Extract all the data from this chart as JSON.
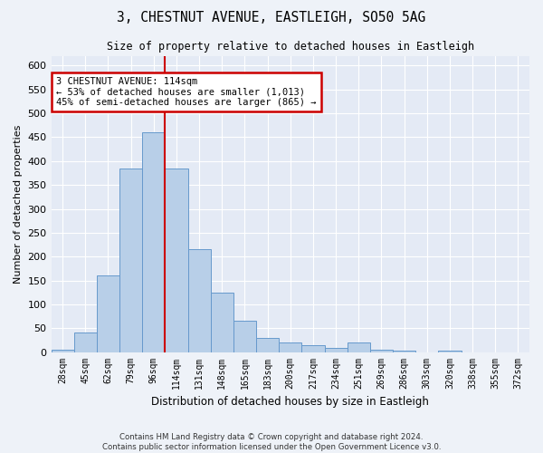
{
  "title1": "3, CHESTNUT AVENUE, EASTLEIGH, SO50 5AG",
  "title2": "Size of property relative to detached houses in Eastleigh",
  "xlabel": "Distribution of detached houses by size in Eastleigh",
  "ylabel": "Number of detached properties",
  "categories": [
    "28sqm",
    "45sqm",
    "62sqm",
    "79sqm",
    "96sqm",
    "114sqm",
    "131sqm",
    "148sqm",
    "165sqm",
    "183sqm",
    "200sqm",
    "217sqm",
    "234sqm",
    "251sqm",
    "269sqm",
    "286sqm",
    "303sqm",
    "320sqm",
    "338sqm",
    "355sqm",
    "372sqm"
  ],
  "values": [
    5,
    40,
    160,
    385,
    460,
    385,
    215,
    125,
    65,
    30,
    20,
    15,
    8,
    20,
    5,
    3,
    0,
    3,
    0,
    0,
    0
  ],
  "bar_color": "#b8cfe8",
  "bar_edge_color": "#6699cc",
  "red_line_x": 5,
  "annotation_line1": "3 CHESTNUT AVENUE: 114sqm",
  "annotation_line2": "← 53% of detached houses are smaller (1,013)",
  "annotation_line3": "45% of semi-detached houses are larger (865) →",
  "annotation_box_color": "#ffffff",
  "annotation_box_edge_color": "#cc0000",
  "ylim": [
    0,
    620
  ],
  "yticks": [
    0,
    50,
    100,
    150,
    200,
    250,
    300,
    350,
    400,
    450,
    500,
    550,
    600
  ],
  "footer1": "Contains HM Land Registry data © Crown copyright and database right 2024.",
  "footer2": "Contains public sector information licensed under the Open Government Licence v3.0.",
  "bg_color": "#eef2f8",
  "plot_bg_color": "#e4eaf5"
}
